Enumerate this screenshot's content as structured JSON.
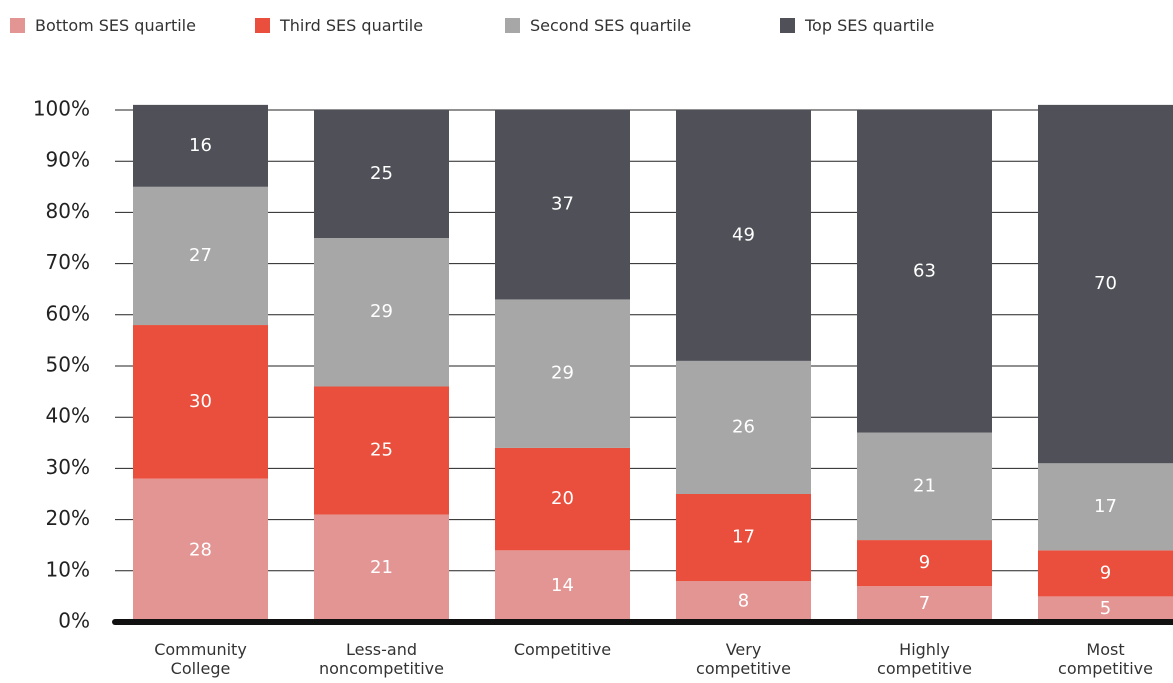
{
  "chart_data": {
    "type": "stacked_bar",
    "categories": [
      "Community College",
      "Less-and noncompetitive",
      "Competitive",
      "Very competitive",
      "Highly competitive",
      "Most competitive"
    ],
    "series": [
      {
        "name": "Bottom SES quartile",
        "color": "#e39593",
        "values": [
          28,
          21,
          14,
          8,
          7,
          5
        ]
      },
      {
        "name": "Third SES quartile",
        "color": "#e94f3c",
        "values": [
          30,
          25,
          20,
          17,
          9,
          9
        ]
      },
      {
        "name": "Second SES quartile",
        "color": "#a7a7a7",
        "values": [
          27,
          29,
          29,
          26,
          21,
          17
        ]
      },
      {
        "name": "Top SES quartile",
        "color": "#4f5058",
        "values": [
          16,
          25,
          37,
          49,
          63,
          70
        ]
      }
    ],
    "ylim": [
      0,
      100
    ],
    "yticks": [
      {
        "value": 0,
        "label": "0%"
      },
      {
        "value": 10,
        "label": "10%"
      },
      {
        "value": 20,
        "label": "20%"
      },
      {
        "value": 30,
        "label": "30%"
      },
      {
        "value": 40,
        "label": "40%"
      },
      {
        "value": 50,
        "label": "50%"
      },
      {
        "value": 60,
        "label": "60%"
      },
      {
        "value": 70,
        "label": "70%"
      },
      {
        "value": 80,
        "label": "80%"
      },
      {
        "value": 90,
        "label": "90%"
      },
      {
        "value": 100,
        "label": "100%"
      }
    ],
    "grid": true
  }
}
